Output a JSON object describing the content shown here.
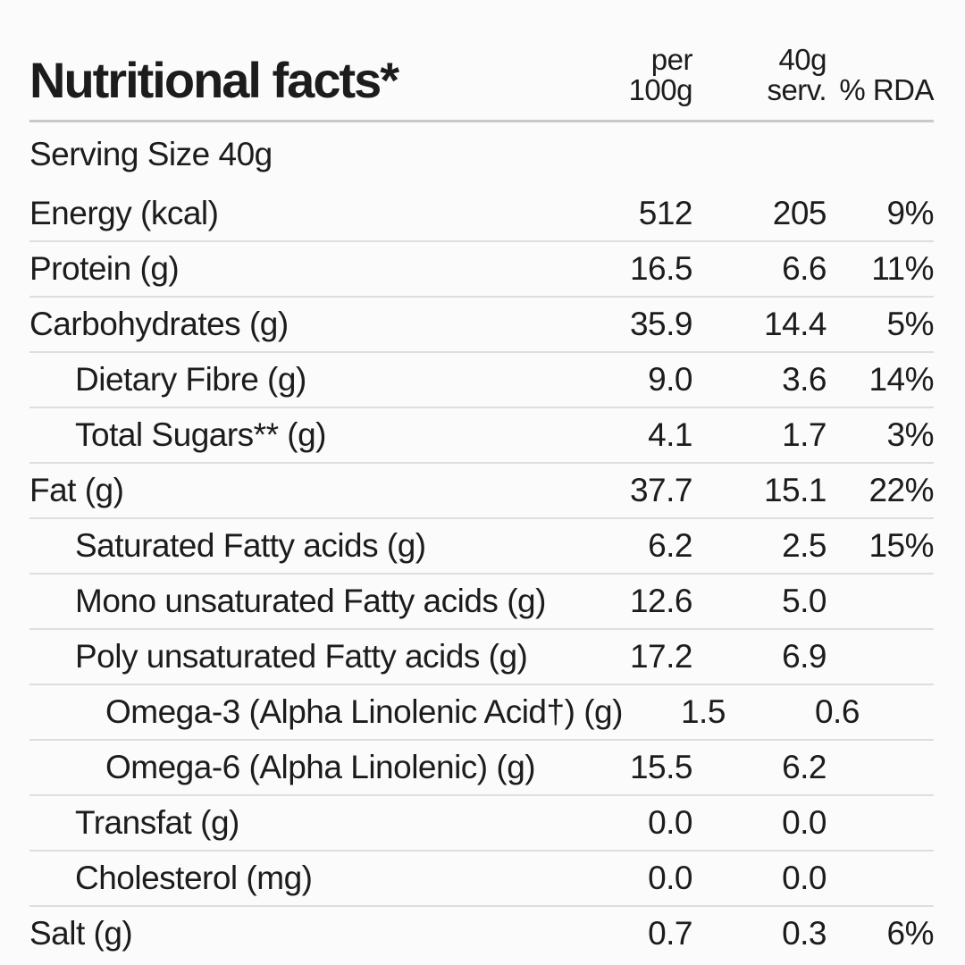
{
  "page": {
    "background_color": "#fbfbfb",
    "text_color": "#1c1c1c",
    "divider_color": "#dedede",
    "header_divider_color": "#c9c9c9"
  },
  "header": {
    "title": "Nutritional facts*",
    "col_per_100g": {
      "line1": "per",
      "line2": "100g"
    },
    "col_serving": {
      "line1": "40g",
      "line2": "serv."
    },
    "col_rda": "% RDA"
  },
  "rows": [
    {
      "label": "Serving Size 40g",
      "indent": 0,
      "per_100g": "",
      "per_serving": "",
      "rda": ""
    },
    {
      "label": "Energy (kcal)",
      "indent": 0,
      "per_100g": "512",
      "per_serving": "205",
      "rda": "9%"
    },
    {
      "label": "Protein (g)",
      "indent": 0,
      "per_100g": "16.5",
      "per_serving": "6.6",
      "rda": "11%"
    },
    {
      "label": "Carbohydrates (g)",
      "indent": 0,
      "per_100g": "35.9",
      "per_serving": "14.4",
      "rda": "5%"
    },
    {
      "label": "Dietary Fibre (g)",
      "indent": 1,
      "per_100g": "9.0",
      "per_serving": "3.6",
      "rda": "14%"
    },
    {
      "label": "Total Sugars** (g)",
      "indent": 1,
      "per_100g": "4.1",
      "per_serving": "1.7",
      "rda": "3%"
    },
    {
      "label": "Fat (g)",
      "indent": 0,
      "per_100g": "37.7",
      "per_serving": "15.1",
      "rda": "22%"
    },
    {
      "label": "Saturated Fatty acids (g)",
      "indent": 1,
      "per_100g": "6.2",
      "per_serving": "2.5",
      "rda": "15%"
    },
    {
      "label": "Mono unsaturated Fatty acids (g)",
      "indent": 1,
      "per_100g": "12.6",
      "per_serving": "5.0",
      "rda": ""
    },
    {
      "label": "Poly unsaturated Fatty acids (g)",
      "indent": 1,
      "per_100g": "17.2",
      "per_serving": "6.9",
      "rda": ""
    },
    {
      "label": "Omega-3 (Alpha Linolenic Acid†) (g)",
      "indent": 2,
      "per_100g": "1.5",
      "per_serving": "0.6",
      "rda": ""
    },
    {
      "label": "Omega-6 (Alpha Linolenic) (g)",
      "indent": 2,
      "per_100g": "15.5",
      "per_serving": "6.2",
      "rda": ""
    },
    {
      "label": "Transfat (g)",
      "indent": 1,
      "per_100g": "0.0",
      "per_serving": "0.0",
      "rda": ""
    },
    {
      "label": "Cholesterol (mg)",
      "indent": 1,
      "per_100g": "0.0",
      "per_serving": "0.0",
      "rda": ""
    },
    {
      "label": "Salt (g)",
      "indent": 0,
      "per_100g": "0.7",
      "per_serving": "0.3",
      "rda": "6%"
    }
  ]
}
